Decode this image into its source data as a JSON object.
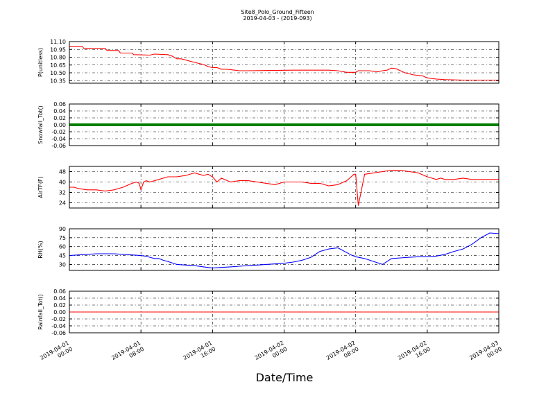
{
  "title": "Site8_Polo_Ground_Fifteen",
  "subtitle": "2019-04-03 - (2019-093)",
  "xlabel": "Date/Time",
  "xticks": [
    {
      "x": 0,
      "label1": "2019-04-01",
      "label2": "00:00"
    },
    {
      "x": 8,
      "label1": "2019-04-01",
      "label2": "08:00"
    },
    {
      "x": 16,
      "label1": "2019-04-01",
      "label2": "16:00"
    },
    {
      "x": 24,
      "label1": "2019-04-02",
      "label2": "00:00"
    },
    {
      "x": 32,
      "label1": "2019-04-02",
      "label2": "08:00"
    },
    {
      "x": 40,
      "label1": "2019-04-02",
      "label2": "16:00"
    },
    {
      "x": 48,
      "label1": "2019-04-03",
      "label2": "00:00"
    }
  ],
  "chart_data": [
    {
      "type": "line",
      "ylabel": "P(unitless)",
      "color": "#ff0000",
      "xlim": [
        0,
        48
      ],
      "ylim": [
        10.3,
        11.1
      ],
      "yticks": [
        "10.35",
        "10.50",
        "10.65",
        "10.80",
        "10.95",
        "11.10"
      ],
      "x": [
        0,
        1.5,
        1.6,
        4,
        4.2,
        5.5,
        5.7,
        7,
        7.2,
        9,
        9.5,
        11,
        11.5,
        12,
        12.5,
        14,
        14.5,
        15,
        15.5,
        16,
        16.5,
        17,
        17.5,
        18,
        18.5,
        19,
        19.5,
        20,
        25,
        28,
        29,
        30,
        31,
        32,
        32.3,
        33,
        33.5,
        34,
        34.5,
        35,
        35.5,
        36,
        36.5,
        37,
        37.5,
        38,
        38.5,
        39,
        39.5,
        40,
        41,
        42,
        44,
        46,
        48
      ],
      "y": [
        11.0,
        11.0,
        10.97,
        10.97,
        10.93,
        10.93,
        10.88,
        10.88,
        10.85,
        10.84,
        10.86,
        10.85,
        10.82,
        10.77,
        10.77,
        10.7,
        10.68,
        10.66,
        10.62,
        10.6,
        10.6,
        10.57,
        10.57,
        10.56,
        10.55,
        10.54,
        10.54,
        10.54,
        10.55,
        10.55,
        10.55,
        10.54,
        10.51,
        10.51,
        10.54,
        10.54,
        10.54,
        10.53,
        10.52,
        10.54,
        10.55,
        10.59,
        10.58,
        10.54,
        10.5,
        10.48,
        10.46,
        10.45,
        10.44,
        10.4,
        10.38,
        10.37,
        10.36,
        10.36,
        10.36
      ]
    },
    {
      "type": "scatter",
      "ylabel": "Snowfall_Tot()",
      "color": "#007f00",
      "xlim": [
        0,
        48
      ],
      "ylim": [
        -0.06,
        0.06
      ],
      "yticks": [
        "0.06",
        "0.04",
        "0.02",
        "0.00",
        "-0.02",
        "-0.04",
        "-0.06"
      ],
      "x": [
        0,
        48
      ],
      "y": [
        0,
        0
      ]
    },
    {
      "type": "line",
      "ylabel": "AirTF(F)",
      "color": "#ff0000",
      "xlim": [
        0,
        48
      ],
      "ylim": [
        20,
        52
      ],
      "yticks": [
        "24",
        "32",
        "40",
        "48"
      ],
      "x": [
        0,
        0.5,
        1,
        2,
        3,
        4,
        5,
        6,
        7,
        7.5,
        7.8,
        8,
        8.3,
        8.6,
        9,
        10,
        11,
        12,
        13,
        14,
        14.5,
        15,
        15.5,
        16,
        16.5,
        17,
        18,
        19,
        20,
        21,
        22,
        23,
        24,
        25,
        26,
        27,
        28,
        29,
        30,
        31,
        31.5,
        31.8,
        32,
        32.3,
        33,
        34,
        35,
        36,
        37,
        38,
        39,
        40,
        40.5,
        41,
        41.5,
        42,
        43,
        44,
        45,
        46,
        47,
        48
      ],
      "y": [
        36,
        36,
        35,
        34,
        34,
        33,
        34,
        36,
        39,
        40,
        39,
        34,
        40,
        41,
        40,
        42,
        44,
        44,
        45,
        47,
        46,
        45,
        46,
        44,
        40,
        43,
        40,
        41,
        41,
        40,
        39,
        38,
        40,
        40,
        40,
        39,
        39,
        37,
        38,
        41,
        44,
        46,
        46,
        22,
        46,
        47,
        48,
        49,
        49,
        48,
        47,
        44,
        43,
        42,
        43,
        42,
        42,
        43,
        42,
        42,
        42,
        42
      ]
    },
    {
      "type": "line",
      "ylabel": "RH(%)",
      "color": "#0000ff",
      "xlim": [
        0,
        48
      ],
      "ylim": [
        20,
        90
      ],
      "yticks": [
        "30",
        "45",
        "60",
        "75",
        "90"
      ],
      "x": [
        0,
        1,
        2,
        3,
        4,
        5,
        6,
        7,
        8,
        8.5,
        9,
        9.5,
        10,
        10.5,
        11,
        12,
        13,
        14,
        15,
        16,
        17,
        18,
        19,
        20,
        21,
        22,
        23,
        24,
        25,
        26,
        27,
        28,
        29,
        30,
        31,
        31.5,
        32,
        33,
        34,
        35,
        36,
        37,
        38,
        39,
        40,
        41,
        42,
        43,
        44,
        45,
        46,
        47,
        48
      ],
      "y": [
        45,
        46,
        47,
        48,
        48,
        48,
        47,
        46,
        45,
        44,
        42,
        40,
        40,
        37,
        35,
        30,
        29,
        28,
        26,
        24,
        25,
        26,
        27,
        28,
        29,
        30,
        31,
        32,
        34,
        37,
        42,
        52,
        56,
        58,
        50,
        46,
        43,
        40,
        35,
        30,
        40,
        41,
        42,
        43,
        43,
        44,
        47,
        52,
        56,
        64,
        75,
        83,
        82
      ]
    },
    {
      "type": "line",
      "ylabel": "Rainfall_Tot()",
      "color": "#ff0000",
      "xlim": [
        0,
        48
      ],
      "ylim": [
        -0.06,
        0.06
      ],
      "yticks": [
        "0.06",
        "0.04",
        "0.02",
        "0.00",
        "-0.02",
        "-0.04",
        "-0.06"
      ],
      "x": [
        0,
        48
      ],
      "y": [
        0,
        0
      ]
    }
  ]
}
